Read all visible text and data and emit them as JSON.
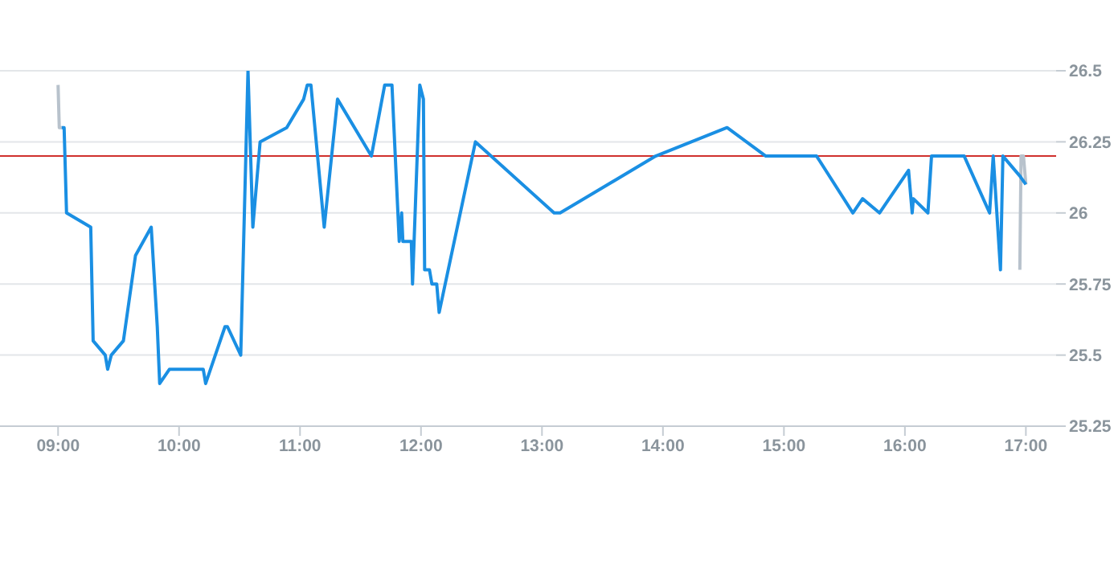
{
  "chart_data": {
    "type": "line",
    "xlim": [
      8.52,
      17.25
    ],
    "xticks": [
      {
        "value": 9,
        "label": "09:00"
      },
      {
        "value": 10,
        "label": "10:00"
      },
      {
        "value": 11,
        "label": "11:00"
      },
      {
        "value": 12,
        "label": "12:00"
      },
      {
        "value": 13,
        "label": "13:00"
      },
      {
        "value": 14,
        "label": "14:00"
      },
      {
        "value": 15,
        "label": "15:00"
      },
      {
        "value": 16,
        "label": "16:00"
      },
      {
        "value": 17,
        "label": "17:00"
      }
    ],
    "ylim": [
      25.25,
      26.5
    ],
    "yticks": [
      25.25,
      25.5,
      25.75,
      26,
      26.25,
      26.5
    ],
    "grid": "y",
    "marker": "none",
    "line_style": "solid",
    "ref_lines": [
      {
        "axis": "y",
        "value": 26.2,
        "color": "#d0312d"
      }
    ],
    "series": [
      {
        "color": "#b8c2cc",
        "x": [
          9.0,
          9.01,
          9.03,
          16.79,
          16.95,
          16.96,
          16.98,
          17.0
        ],
        "values": [
          26.45,
          26.3,
          26.3,
          null,
          25.8,
          26.2,
          26.2,
          26.1
        ]
      },
      {
        "color": "#1a8fe3",
        "x": [
          9.03,
          9.05,
          9.07,
          9.27,
          9.29,
          9.39,
          9.41,
          9.44,
          9.54,
          9.64,
          9.77,
          9.82,
          9.84,
          9.92,
          10.2,
          10.22,
          10.38,
          10.4,
          10.51,
          10.57,
          10.61,
          10.67,
          10.89,
          11.03,
          11.06,
          11.09,
          11.2,
          11.31,
          11.59,
          11.7,
          11.76,
          11.82,
          11.84,
          11.85,
          11.92,
          11.93,
          11.99,
          12.02,
          12.03,
          12.07,
          12.09,
          12.13,
          12.15,
          12.45,
          13.1,
          13.15,
          13.94,
          14.53,
          14.85,
          15.27,
          15.57,
          15.65,
          15.79,
          16.03,
          16.06,
          16.07,
          16.19,
          16.22,
          16.49,
          16.7,
          16.73,
          16.79,
          16.81,
          16.95,
          17.0
        ],
        "values": [
          26.3,
          26.3,
          26.0,
          25.95,
          25.55,
          25.5,
          25.45,
          25.5,
          25.55,
          25.85,
          25.95,
          25.6,
          25.4,
          25.45,
          25.45,
          25.4,
          25.6,
          25.6,
          25.5,
          26.5,
          25.95,
          26.25,
          26.3,
          26.4,
          26.45,
          26.45,
          25.95,
          26.4,
          26.2,
          26.45,
          26.45,
          25.9,
          26.0,
          25.9,
          25.9,
          25.75,
          26.45,
          26.4,
          25.8,
          25.8,
          25.75,
          25.75,
          25.65,
          26.25,
          26.0,
          26.0,
          26.2,
          26.3,
          26.2,
          26.2,
          26.0,
          26.05,
          26.0,
          26.15,
          26.0,
          26.05,
          26.0,
          26.2,
          26.2,
          26.0,
          26.2,
          25.8,
          26.2,
          26.13,
          26.1
        ]
      }
    ]
  }
}
